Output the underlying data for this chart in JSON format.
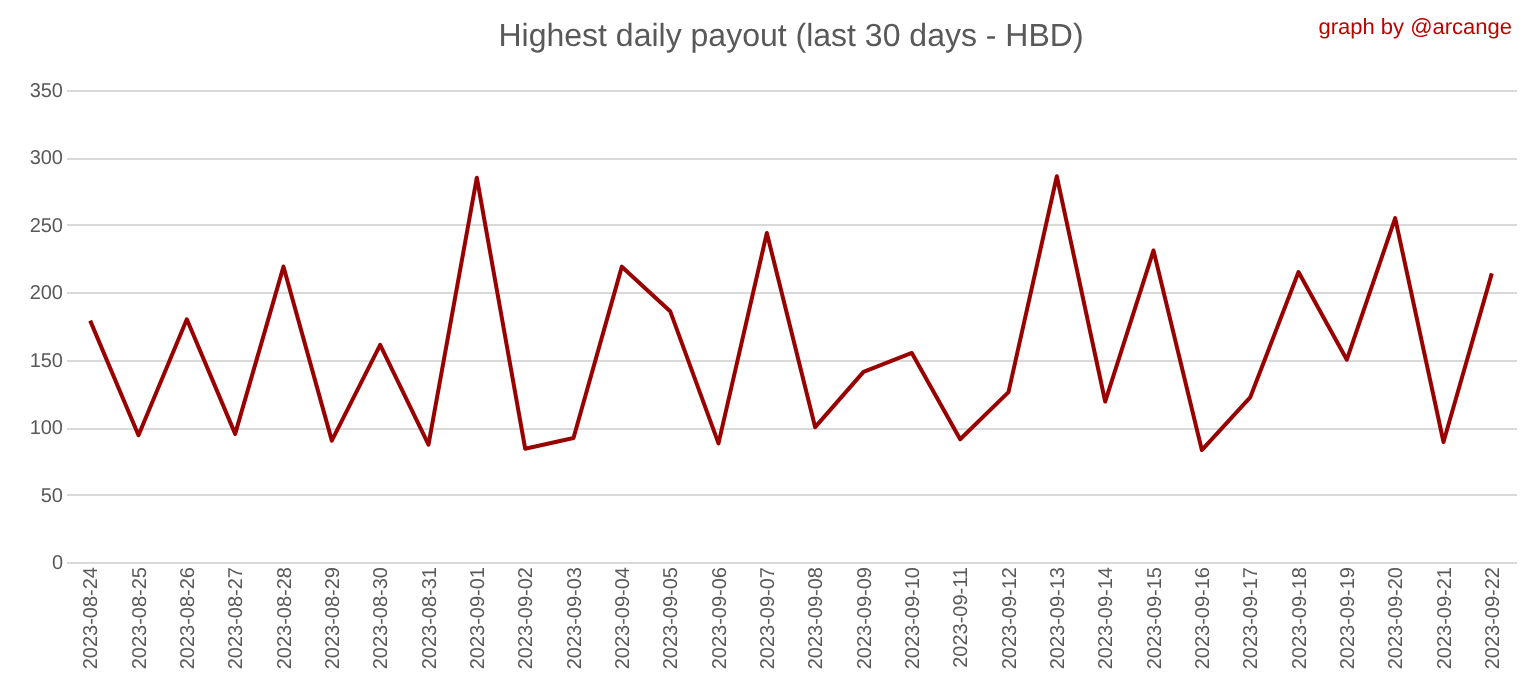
{
  "chart_data": {
    "type": "line",
    "title": "Highest daily payout (last 30 days - HBD)",
    "annotations": [
      "graph by @arcange"
    ],
    "categories": [
      "2023-08-24",
      "2023-08-25",
      "2023-08-26",
      "2023-08-27",
      "2023-08-28",
      "2023-08-29",
      "2023-08-30",
      "2023-08-31",
      "2023-09-01",
      "2023-09-02",
      "2023-09-03",
      "2023-09-04",
      "2023-09-05",
      "2023-09-06",
      "2023-09-07",
      "2023-09-08",
      "2023-09-09",
      "2023-09-10",
      "2023-09-11",
      "2023-09-12",
      "2023-09-13",
      "2023-09-14",
      "2023-09-15",
      "2023-09-16",
      "2023-09-17",
      "2023-09-18",
      "2023-09-19",
      "2023-09-20",
      "2023-09-21",
      "2023-09-22"
    ],
    "series": [
      {
        "color": "#990000",
        "values": [
          179,
          94,
          180,
          95,
          219,
          90,
          161,
          87,
          285,
          84,
          92,
          219,
          186,
          88,
          244,
          100,
          141,
          155,
          91,
          126,
          286,
          119,
          231,
          83,
          122,
          215,
          150,
          255,
          89,
          214
        ]
      }
    ],
    "ylim": [
      0,
      350
    ],
    "yticks": [
      0,
      50,
      100,
      150,
      200,
      250,
      300,
      350
    ],
    "grid": "y",
    "legend": false,
    "marker": "none",
    "line_style": "solid"
  }
}
